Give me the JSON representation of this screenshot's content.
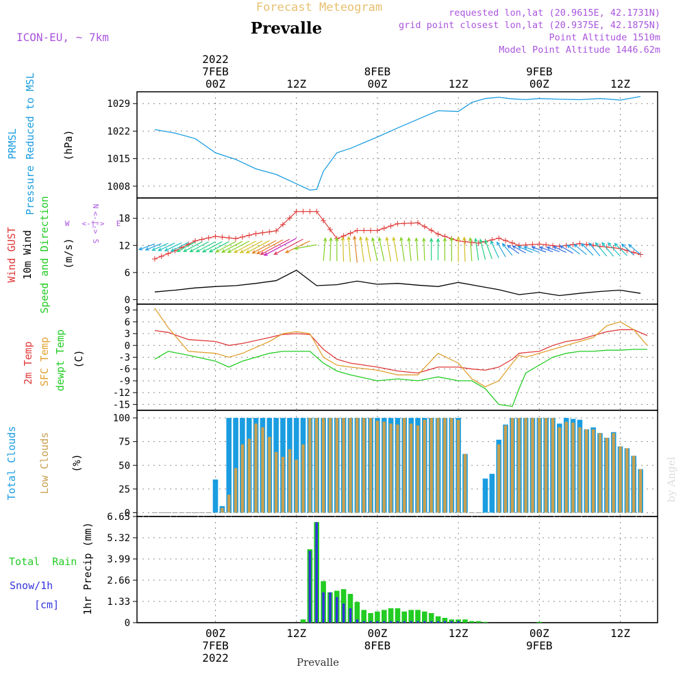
{
  "header": {
    "top_title": "Forecast Meteogram",
    "location": "Prevalle",
    "model": "ICON-EU, ~ 7km",
    "requested": "requested lon,lat (20.9615E, 42.1731N)",
    "grid_point": "grid point closest lon,lat (20.9375E, 42.1875N)",
    "point_altitude": "Point Altitude 1510m",
    "model_altitude": "Model Point Altitude 1446.62m"
  },
  "footer": {
    "location": "Prevalle",
    "watermark": "by Angel"
  },
  "time_axis": {
    "top_labels": [
      {
        "h": 0,
        "lines": [
          "2022",
          "7FEB",
          "00Z"
        ]
      },
      {
        "h": 12,
        "lines": [
          "12Z"
        ]
      },
      {
        "h": 24,
        "lines": [
          "8FEB",
          "00Z"
        ]
      },
      {
        "h": 36,
        "lines": [
          "12Z"
        ]
      },
      {
        "h": 48,
        "lines": [
          "9FEB",
          "00Z"
        ]
      },
      {
        "h": 60,
        "lines": [
          "12Z"
        ]
      }
    ],
    "bottom_labels": [
      {
        "h": 0,
        "lines": [
          "00Z",
          "7FEB",
          "2022"
        ]
      },
      {
        "h": 12,
        "lines": [
          "12Z"
        ]
      },
      {
        "h": 24,
        "lines": [
          "00Z",
          "8FEB"
        ]
      },
      {
        "h": 36,
        "lines": [
          "12Z"
        ]
      },
      {
        "h": 48,
        "lines": [
          "00Z",
          "9FEB"
        ]
      },
      {
        "h": 60,
        "lines": [
          "12Z"
        ]
      }
    ]
  },
  "panel_labels": {
    "pressure": {
      "name": "PRMSL",
      "desc": "Pressure Reduced to MSL",
      "unit": "(hPa)"
    },
    "wind": {
      "gust": "Wind GUST",
      "wind10": "10m Wind",
      "speed_dir": "Speed and Direction",
      "unit": "(m/s)",
      "compass_n": "N",
      "compass_s": "S",
      "compass_w": "W",
      "compass_e": "E",
      "compass_v": "<-|->"
    },
    "temp": {
      "t2m": "2m Temp",
      "sfc": "SFC Temp",
      "dewpt": "dewpt Temp",
      "unit": "(C)"
    },
    "clouds": {
      "total": "Total Clouds",
      "low": "Low Clouds",
      "unit": "(%)"
    },
    "precip": {
      "rain": "Total  Rain",
      "snow": "Snow/1h",
      "snow_unit": "[cm]",
      "axis": "1hr Precip (mm)"
    }
  },
  "colors": {
    "pressure": "#1a9de0",
    "gust": "#e03838",
    "wind10": "#000000",
    "t2m": "#e03838",
    "sfc": "#e0a030",
    "dewpt": "#22cc22",
    "total_clouds": "#1a9de0",
    "low_clouds": "#c8a050",
    "rain": "#22cc22",
    "snow": "#3333dd",
    "header_purple": "#aa55dd",
    "title_orange": "#e8c070"
  },
  "chart_data": [
    {
      "id": "pressure",
      "type": "line",
      "ylabel": "(hPa)",
      "yticks": [
        "1008",
        "1015",
        "1022",
        "1029"
      ],
      "ylim": [
        1005,
        1032
      ],
      "x": [
        -9,
        -6,
        -3,
        0,
        3,
        6,
        9,
        12,
        14,
        15,
        16,
        18,
        20,
        24,
        27,
        30,
        33,
        36,
        38,
        40,
        42,
        44,
        46,
        48,
        51,
        54,
        57,
        60,
        63
      ],
      "series": [
        {
          "name": "PRMSL",
          "values": [
            1022.4,
            1021.5,
            1020.1,
            1016.5,
            1014.8,
            1012.4,
            1011.0,
            1008.6,
            1007.0,
            1007.2,
            1011.8,
            1016.5,
            1017.6,
            1020.5,
            1022.8,
            1025.0,
            1027.2,
            1027.0,
            1029.3,
            1030.3,
            1030.6,
            1030.2,
            1030.0,
            1030.3,
            1030.1,
            1030.0,
            1030.3,
            1029.9,
            1030.8
          ]
        }
      ]
    },
    {
      "id": "wind",
      "type": "line",
      "ylabel": "(m/s)",
      "yticks": [
        "0",
        "6",
        "12",
        "18"
      ],
      "ylim": [
        -1,
        22.5
      ],
      "x": [
        -9,
        -6,
        -3,
        0,
        3,
        6,
        9,
        12,
        15,
        18,
        21,
        24,
        27,
        30,
        33,
        36,
        39,
        42,
        45,
        48,
        51,
        54,
        57,
        60,
        63
      ],
      "series": [
        {
          "name": "Wind GUST",
          "values": [
            9.0,
            10.8,
            13.0,
            14.0,
            13.5,
            14.6,
            15.2,
            19.5,
            19.5,
            13.5,
            15.3,
            15.3,
            16.8,
            17.0,
            14.5,
            13.0,
            12.5,
            13.6,
            12.0,
            12.3,
            11.8,
            12.4,
            11.8,
            11.3,
            10.0
          ]
        },
        {
          "name": "10m Wind",
          "values": [
            1.7,
            2.1,
            2.6,
            2.9,
            3.1,
            3.6,
            4.2,
            6.5,
            3.1,
            3.3,
            4.1,
            3.4,
            3.6,
            3.2,
            2.9,
            3.8,
            3.0,
            2.2,
            1.1,
            1.6,
            0.9,
            1.4,
            1.8,
            2.1,
            1.4
          ]
        }
      ],
      "arrow_x": [
        -9,
        -8,
        -7,
        -6,
        -5,
        -4,
        -3,
        -2,
        -1,
        0,
        1,
        2,
        3,
        4,
        5,
        6,
        7,
        8,
        9,
        10,
        11,
        12,
        13,
        14,
        15,
        16,
        17,
        18,
        19,
        20,
        21,
        22,
        23,
        24,
        25,
        26,
        27,
        28,
        29,
        30,
        31,
        32,
        33,
        34,
        35,
        36,
        37,
        38,
        39,
        40,
        41,
        42,
        43,
        44,
        45,
        46,
        47,
        48,
        49,
        50,
        51,
        52,
        53,
        54,
        55,
        56,
        57,
        58,
        59,
        60,
        61,
        62,
        63
      ],
      "arrow_speed": [
        1.7,
        1.8,
        1.9,
        2.1,
        2.2,
        2.4,
        2.6,
        2.7,
        2.8,
        2.9,
        3.0,
        3.0,
        3.1,
        3.3,
        3.5,
        3.6,
        3.8,
        4.0,
        4.2,
        4.8,
        5.6,
        6.5,
        5.6,
        4.2,
        3.1,
        3.2,
        3.3,
        3.3,
        3.6,
        3.8,
        4.1,
        3.8,
        3.6,
        3.4,
        3.5,
        3.6,
        3.6,
        3.5,
        3.3,
        3.2,
        3.1,
        3.0,
        2.9,
        3.2,
        3.5,
        3.8,
        3.6,
        3.3,
        3.0,
        2.7,
        2.5,
        2.2,
        1.8,
        1.4,
        1.1,
        1.3,
        1.5,
        1.6,
        1.3,
        1.0,
        0.9,
        1.1,
        1.3,
        1.4,
        1.6,
        1.7,
        1.8,
        1.9,
        2.0,
        2.1,
        1.9,
        1.6,
        1.4
      ],
      "arrow_dir": [
        70,
        68,
        66,
        65,
        64,
        63,
        62,
        62,
        62,
        62,
        62,
        62,
        62,
        62,
        62,
        62,
        62,
        62,
        62,
        62,
        62,
        62,
        62,
        64,
        80,
        185,
        182,
        180,
        178,
        176,
        174,
        172,
        170,
        168,
        168,
        170,
        170,
        172,
        174,
        176,
        178,
        180,
        180,
        180,
        180,
        180,
        178,
        176,
        172,
        166,
        160,
        155,
        150,
        140,
        125,
        118,
        113,
        110,
        110,
        110,
        110,
        115,
        120,
        125,
        130,
        135,
        140,
        140,
        140,
        138,
        135,
        132,
        130
      ]
    },
    {
      "id": "temperature",
      "type": "line",
      "ylabel": "(C)",
      "yticks": [
        "-15",
        "-12",
        "-9",
        "-6",
        "-3",
        "0",
        "3",
        "6",
        "9"
      ],
      "ylim": [
        -16.5,
        10.5
      ],
      "x": [
        -9,
        -7,
        -4,
        0,
        2,
        4,
        8,
        10,
        12,
        14,
        16,
        18,
        20,
        24,
        27,
        30,
        33,
        36,
        38,
        40,
        42,
        44,
        45,
        46,
        48,
        50,
        52,
        54,
        56,
        58,
        60,
        62,
        64
      ],
      "series": [
        {
          "name": "2m Temp",
          "values": [
            3.8,
            3.3,
            1.5,
            1.0,
            0.0,
            0.5,
            2.0,
            2.8,
            3.0,
            2.8,
            -1.0,
            -3.5,
            -4.5,
            -5.5,
            -6.5,
            -7.0,
            -5.5,
            -5.5,
            -6.0,
            -6.3,
            -5.5,
            -3.5,
            -2.0,
            -1.8,
            -1.5,
            0.0,
            1.0,
            1.5,
            2.5,
            3.5,
            4.0,
            4.0,
            2.5
          ]
        },
        {
          "name": "SFC Temp",
          "values": [
            9.5,
            4.5,
            -1.5,
            -2.0,
            -3.0,
            -2.0,
            1.0,
            3.0,
            3.5,
            3.0,
            -3.0,
            -5.0,
            -5.5,
            -6.3,
            -7.5,
            -7.5,
            -2.0,
            -4.5,
            -8.5,
            -10.5,
            -9.0,
            -4.5,
            -2.5,
            -3.0,
            -2.0,
            -1.0,
            0.0,
            1.0,
            2.0,
            5.0,
            6.0,
            4.0,
            0.0
          ]
        },
        {
          "name": "dewpt Temp",
          "values": [
            -3.5,
            -1.5,
            -2.5,
            -4.0,
            -5.5,
            -4.0,
            -2.0,
            -1.5,
            -1.5,
            -1.5,
            -4.5,
            -6.5,
            -7.5,
            -9.0,
            -8.5,
            -9.0,
            -8.0,
            -9.0,
            -9.0,
            -11.0,
            -15.0,
            -15.5,
            -11.0,
            -7.0,
            -5.0,
            -3.0,
            -2.0,
            -1.5,
            -1.5,
            -1.2,
            -1.2,
            -1.0,
            -1.0
          ]
        }
      ]
    },
    {
      "id": "clouds",
      "type": "bar",
      "ylabel": "(%)",
      "yticks": [
        "0",
        "25",
        "50",
        "75",
        "100"
      ],
      "ylim": [
        -4,
        108
      ],
      "x": [
        -9,
        -8,
        -7,
        -6,
        -5,
        -4,
        -3,
        -2,
        -1,
        0,
        1,
        2,
        3,
        4,
        5,
        6,
        7,
        8,
        9,
        10,
        11,
        12,
        13,
        14,
        15,
        16,
        17,
        18,
        19,
        20,
        21,
        22,
        23,
        24,
        25,
        26,
        27,
        28,
        29,
        30,
        31,
        32,
        33,
        34,
        35,
        36,
        37,
        38,
        39,
        40,
        41,
        42,
        43,
        44,
        45,
        46,
        47,
        48,
        49,
        50,
        51,
        52,
        53,
        54,
        55,
        56,
        57,
        58,
        59,
        60,
        61,
        62,
        63
      ],
      "series": [
        {
          "name": "Total Clouds",
          "values": [
            0,
            0,
            0,
            0,
            0,
            0,
            0,
            0,
            0,
            35,
            7,
            100,
            100,
            100,
            100,
            100,
            100,
            100,
            100,
            100,
            100,
            100,
            100,
            100,
            100,
            100,
            100,
            100,
            100,
            100,
            100,
            100,
            100,
            100,
            100,
            100,
            100,
            100,
            100,
            100,
            100,
            100,
            100,
            100,
            100,
            100,
            62,
            0,
            0,
            36,
            41,
            77,
            93,
            100,
            100,
            100,
            100,
            100,
            100,
            100,
            94,
            100,
            99,
            98,
            88,
            90,
            84,
            79,
            85,
            70,
            68,
            60,
            46
          ]
        },
        {
          "name": "Low Clouds",
          "values": [
            0,
            0,
            0,
            0,
            0,
            0,
            0,
            0,
            0,
            0,
            5,
            19,
            47,
            72,
            78,
            94,
            90,
            80,
            64,
            59,
            67,
            56,
            72,
            100,
            100,
            100,
            100,
            100,
            100,
            100,
            100,
            100,
            100,
            97,
            96,
            94,
            93,
            100,
            94,
            92,
            98,
            100,
            100,
            100,
            100,
            98,
            62,
            0,
            0,
            0,
            0,
            72,
            92,
            100,
            100,
            100,
            100,
            100,
            100,
            100,
            90,
            96,
            95,
            90,
            88,
            88,
            84,
            79,
            84,
            70,
            68,
            60,
            46
          ]
        }
      ]
    },
    {
      "id": "precip",
      "type": "bar",
      "ylabel": "1hr Precip (mm)",
      "yticks": [
        "0",
        "1.33",
        "2.66",
        "3.99",
        "5.32",
        "6.65"
      ],
      "ylim": [
        0,
        6.65
      ],
      "x": [
        13,
        14,
        15,
        16,
        17,
        18,
        19,
        20,
        21,
        22,
        23,
        24,
        25,
        26,
        27,
        28,
        29,
        30,
        31,
        32,
        33,
        34,
        35,
        36,
        37,
        38,
        39,
        40,
        48
      ],
      "series": [
        {
          "name": "Total Rain",
          "values": [
            0.2,
            4.6,
            6.3,
            2.6,
            1.9,
            2.0,
            2.1,
            1.8,
            1.3,
            0.8,
            0.6,
            0.7,
            0.8,
            0.9,
            0.9,
            0.7,
            0.8,
            0.8,
            0.7,
            0.6,
            0.4,
            0.3,
            0.2,
            0.2,
            0.2,
            0.1,
            0.1,
            0.05,
            0.05
          ]
        },
        {
          "name": "Snow/1h",
          "values": [
            0,
            4.5,
            6.3,
            1.9,
            1.9,
            1.6,
            1.2,
            0.9,
            0.2,
            0.1,
            0.1,
            0.1,
            0.1,
            0.1,
            0.1,
            0.1,
            0.1,
            0.1,
            0.1,
            0.1,
            0.1,
            0.1,
            0.1,
            0.1,
            0,
            0,
            0,
            0,
            0
          ]
        }
      ]
    }
  ]
}
